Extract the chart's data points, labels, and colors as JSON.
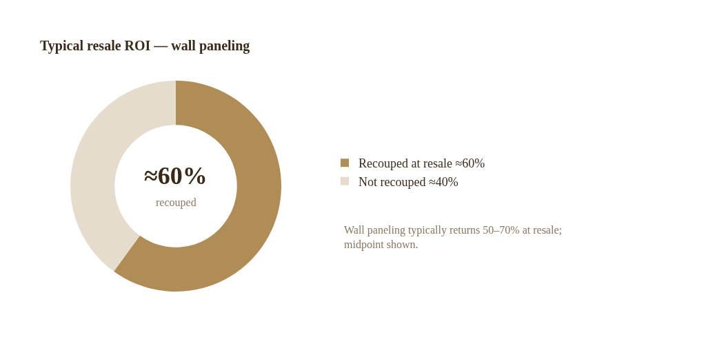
{
  "chart_data": {
    "type": "donut",
    "title": "Typical resale ROI — wall paneling",
    "categories": [
      "Recouped at resale ≈60%",
      "Not recouped ≈40%"
    ],
    "values": [
      60,
      40
    ],
    "colors": [
      "#b08d57",
      "#e6dccd"
    ],
    "annotations": [
      "≈60%",
      "recouped",
      "Wall paneling typically returns 50–70% at resale; midpoint shown."
    ],
    "legend": "right"
  }
}
